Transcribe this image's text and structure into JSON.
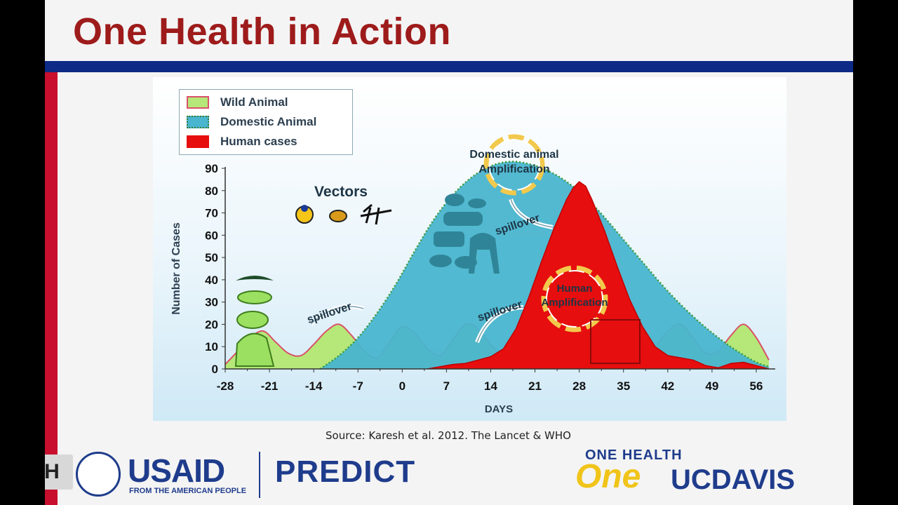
{
  "slide": {
    "title": "One Health in Action",
    "source": "Source: Karesh et al. 2012. The Lancet & WHO"
  },
  "legend": [
    {
      "label": "Wild Animal",
      "color": "#b5e878",
      "border": "#d9526a"
    },
    {
      "label": "Domestic Animal",
      "color": "#49b5cf",
      "border": "#3b7d35"
    },
    {
      "label": "Human cases",
      "color": "#e60e0e",
      "border": "#e60e0e"
    }
  ],
  "annotations": {
    "vectors": "Vectors",
    "spillover": "spillover",
    "domestic_amplification_1": "Domestic animal",
    "domestic_amplification_2": "Amplification",
    "human_amplification_1": "Human",
    "human_amplification_2": "Amplification"
  },
  "chart_data": {
    "type": "area",
    "title": "",
    "xlabel": "DAYS",
    "ylabel": "Number of Cases",
    "xlim": [
      -28,
      59
    ],
    "ylim": [
      0,
      90
    ],
    "xticks": [
      -28,
      -21,
      -14,
      -7,
      0,
      7,
      14,
      21,
      28,
      35,
      42,
      49,
      56
    ],
    "yticks": [
      0,
      10,
      20,
      30,
      40,
      50,
      60,
      70,
      80,
      90
    ],
    "grid": false,
    "legend_position": "top-left",
    "series": [
      {
        "name": "Wild Animal",
        "color": "#b5e878",
        "x": [
          -28,
          -26,
          -24,
          -22,
          -20,
          -18,
          -16,
          -14,
          -12,
          -10,
          -8,
          -6,
          -4,
          -2,
          0,
          2,
          4,
          6,
          8,
          10,
          12,
          14,
          16,
          18,
          20,
          22,
          24,
          26,
          28,
          30,
          32,
          34,
          36,
          38,
          40,
          42,
          44,
          46,
          48,
          50,
          52,
          54,
          56,
          58
        ],
        "values": [
          2,
          8,
          14,
          17,
          12,
          7,
          6,
          11,
          17,
          20,
          15,
          8,
          5,
          12,
          19,
          16,
          9,
          6,
          13,
          20,
          18,
          11,
          6,
          10,
          17,
          20,
          14,
          8,
          7,
          12,
          18,
          19,
          13,
          7,
          10,
          17,
          20,
          14,
          7,
          8,
          15,
          20,
          14,
          4
        ]
      },
      {
        "name": "Domestic Animal",
        "color": "#49b5cf",
        "x": [
          -13,
          -10,
          -7,
          -4,
          -1,
          2,
          5,
          8,
          11,
          14,
          17,
          20,
          23,
          26,
          29,
          32,
          35,
          38,
          41,
          44,
          47,
          50,
          53,
          56,
          58
        ],
        "values": [
          0,
          6,
          14,
          25,
          38,
          53,
          67,
          78,
          86,
          91,
          93,
          92,
          89,
          84,
          77,
          68,
          58,
          48,
          38,
          29,
          21,
          14,
          8,
          3,
          1
        ]
      },
      {
        "name": "Human cases",
        "color": "#e60e0e",
        "x": [
          4,
          6,
          8,
          10,
          12,
          14,
          16,
          18,
          20,
          22,
          24,
          26,
          27,
          28,
          29,
          30,
          32,
          34,
          36,
          38,
          40,
          42,
          44,
          46,
          48,
          50,
          52,
          54,
          56,
          58
        ],
        "values": [
          0,
          1,
          2,
          2.5,
          4,
          5.5,
          9,
          18,
          32,
          48,
          63,
          76,
          81,
          84,
          82,
          76,
          62,
          46,
          31,
          19,
          10,
          6,
          5,
          4,
          1.5,
          0.5,
          2.5,
          3,
          1.5,
          0
        ]
      }
    ]
  }
}
